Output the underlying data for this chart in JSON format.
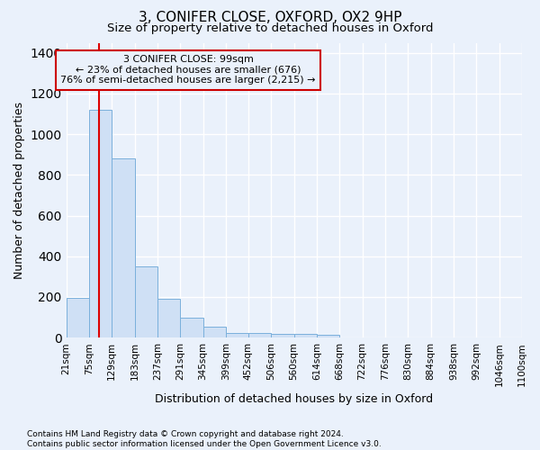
{
  "title": "3, CONIFER CLOSE, OXFORD, OX2 9HP",
  "subtitle": "Size of property relative to detached houses in Oxford",
  "xlabel": "Distribution of detached houses by size in Oxford",
  "ylabel": "Number of detached properties",
  "footnote": "Contains HM Land Registry data © Crown copyright and database right 2024.\nContains public sector information licensed under the Open Government Licence v3.0.",
  "bar_edges": [
    21,
    75,
    129,
    183,
    237,
    291,
    345,
    399,
    452,
    506,
    560,
    614,
    668,
    722,
    776,
    830,
    884,
    938,
    992,
    1046,
    1100
  ],
  "bar_heights": [
    195,
    1120,
    880,
    350,
    190,
    100,
    55,
    25,
    25,
    20,
    20,
    15,
    0,
    0,
    0,
    0,
    0,
    0,
    0,
    0
  ],
  "bar_color": "#cfe0f5",
  "bar_edge_color": "#7ab0dc",
  "property_line_x": 99,
  "property_line_color": "#dd0000",
  "annotation_text": "3 CONIFER CLOSE: 99sqm\n← 23% of detached houses are smaller (676)\n76% of semi-detached houses are larger (2,215) →",
  "annotation_box_edgecolor": "#cc0000",
  "ylim_max": 1450,
  "yticks": [
    0,
    200,
    400,
    600,
    800,
    1000,
    1200,
    1400
  ],
  "bg_color": "#eaf1fb",
  "grid_color": "#ffffff",
  "title_fontsize": 11,
  "subtitle_fontsize": 9.5,
  "axis_label_fontsize": 9,
  "tick_fontsize": 7.5,
  "footnote_fontsize": 6.5
}
